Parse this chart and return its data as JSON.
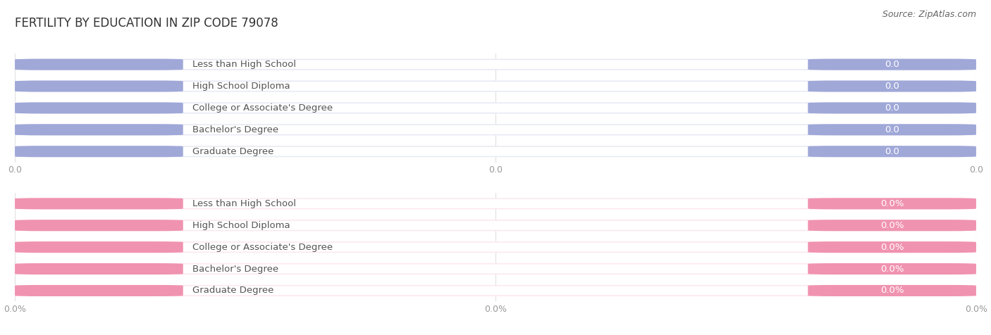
{
  "title": "FERTILITY BY EDUCATION IN ZIP CODE 79078",
  "source": "Source: ZipAtlas.com",
  "categories": [
    "Less than High School",
    "High School Diploma",
    "College or Associate's Degree",
    "Bachelor's Degree",
    "Graduate Degree"
  ],
  "top_values": [
    0.0,
    0.0,
    0.0,
    0.0,
    0.0
  ],
  "bottom_values": [
    0.0,
    0.0,
    0.0,
    0.0,
    0.0
  ],
  "top_color": "#a0a8d8",
  "bottom_color": "#f093b0",
  "top_bg_color": "#e8eaf4",
  "bottom_bg_color": "#fce8f0",
  "top_white_color": "#ffffff",
  "bottom_white_color": "#ffffff",
  "text_color": "#555555",
  "value_text_color": "#ffffff",
  "tick_color": "#999999",
  "grid_color": "#e0e0e0",
  "background_color": "#ffffff",
  "fig_width": 14.06,
  "fig_height": 4.76,
  "title_fontsize": 12,
  "label_fontsize": 9.5,
  "tick_fontsize": 9,
  "source_fontsize": 9,
  "top_tick_values": [
    "0.0",
    "0.0",
    "0.0"
  ],
  "bottom_tick_values": [
    "0.0%",
    "0.0%",
    "0.0%"
  ]
}
